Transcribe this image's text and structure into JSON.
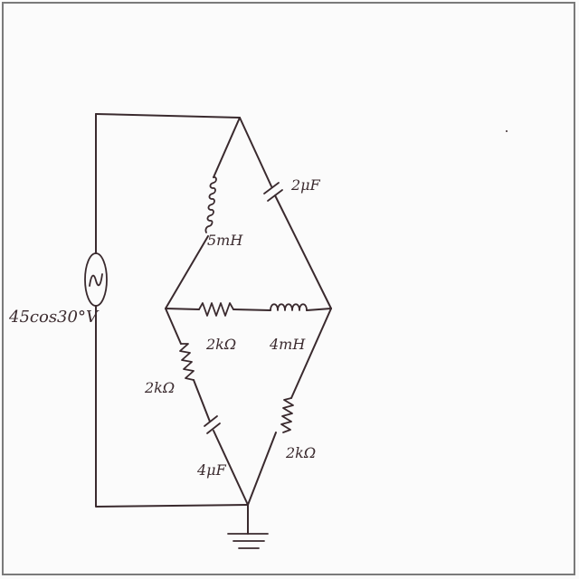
{
  "source": {
    "label": "45cos30°V",
    "symbol": "ac-source-icon"
  },
  "components": {
    "inductor_top_left": "5mH",
    "capacitor_top_right": "2μF",
    "resistor_middle": "2kΩ",
    "inductor_middle": "4mH",
    "resistor_bottom_left": "2kΩ",
    "capacitor_bottom_left": "4μF",
    "resistor_bottom_right": "2kΩ"
  },
  "ground_symbol": "ground-icon",
  "ink_color": "#3a2a2e"
}
